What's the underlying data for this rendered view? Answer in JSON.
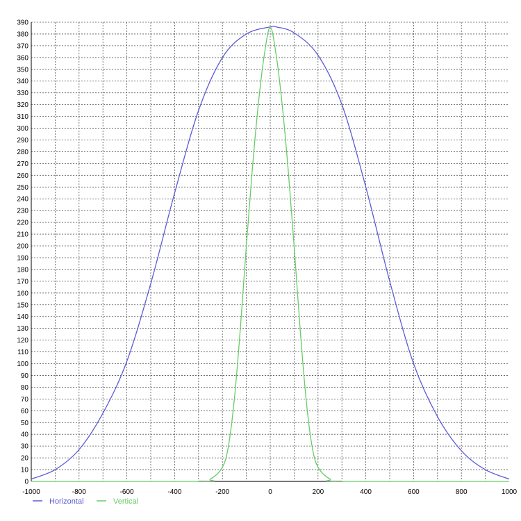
{
  "chart_data": {
    "type": "line",
    "title": "",
    "xlabel": "",
    "ylabel": "",
    "xlim": [
      -1000,
      1000
    ],
    "ylim": [
      0,
      390
    ],
    "grid": true,
    "legend_placement": "bottom-left",
    "x_ticks": [
      -1000,
      -800,
      -600,
      -400,
      -200,
      0,
      200,
      400,
      600,
      800,
      1000
    ],
    "y_ticks": [
      0,
      10,
      20,
      30,
      40,
      50,
      60,
      70,
      80,
      90,
      100,
      110,
      120,
      130,
      140,
      150,
      160,
      170,
      180,
      190,
      200,
      210,
      220,
      230,
      240,
      250,
      260,
      270,
      280,
      290,
      300,
      310,
      320,
      330,
      340,
      350,
      360,
      370,
      380,
      390
    ],
    "series": [
      {
        "name": "Horizontal",
        "color": "#5b5bd6",
        "points": [
          [
            -1000,
            2
          ],
          [
            -900,
            10
          ],
          [
            -800,
            27
          ],
          [
            -700,
            58
          ],
          [
            -600,
            102
          ],
          [
            -500,
            168
          ],
          [
            -400,
            245
          ],
          [
            -300,
            315
          ],
          [
            -200,
            360
          ],
          [
            -100,
            380
          ],
          [
            0,
            386
          ],
          [
            25,
            386
          ],
          [
            100,
            381
          ],
          [
            200,
            362
          ],
          [
            300,
            320
          ],
          [
            400,
            250
          ],
          [
            500,
            170
          ],
          [
            600,
            100
          ],
          [
            700,
            55
          ],
          [
            800,
            26
          ],
          [
            900,
            10
          ],
          [
            1000,
            2
          ]
        ]
      },
      {
        "name": "Vertical",
        "color": "#66cc66",
        "points": [
          [
            -1000,
            0
          ],
          [
            -300,
            0
          ],
          [
            -250,
            2
          ],
          [
            -200,
            12
          ],
          [
            -175,
            30
          ],
          [
            -150,
            70
          ],
          [
            -125,
            130
          ],
          [
            -100,
            200
          ],
          [
            -75,
            265
          ],
          [
            -50,
            320
          ],
          [
            -25,
            362
          ],
          [
            0,
            386
          ],
          [
            25,
            362
          ],
          [
            50,
            320
          ],
          [
            75,
            265
          ],
          [
            100,
            200
          ],
          [
            125,
            130
          ],
          [
            150,
            70
          ],
          [
            175,
            30
          ],
          [
            200,
            12
          ],
          [
            250,
            2
          ],
          [
            300,
            0
          ],
          [
            1000,
            0
          ]
        ]
      }
    ]
  }
}
